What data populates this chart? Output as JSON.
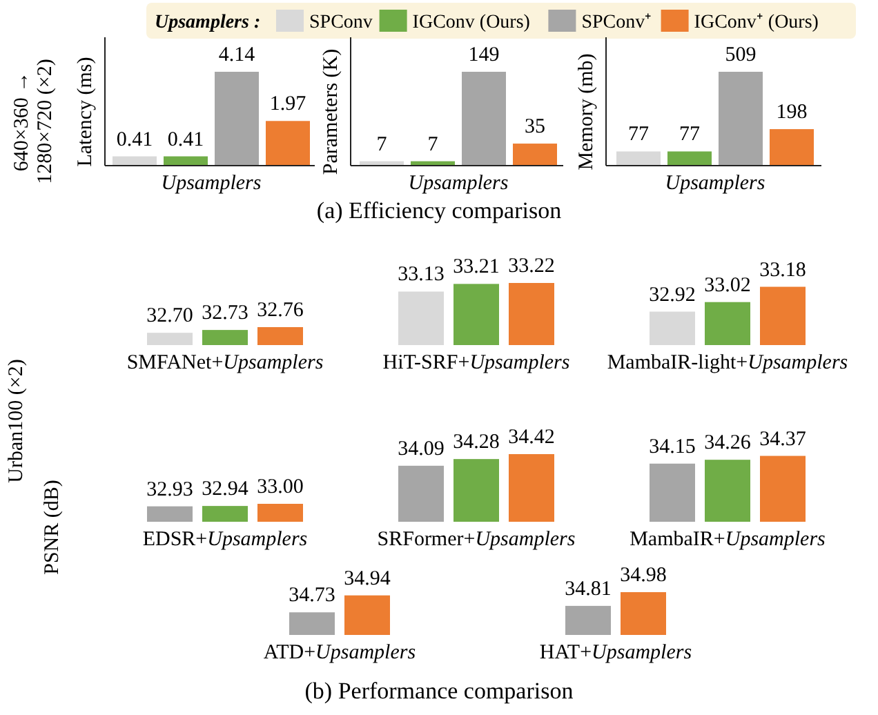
{
  "chart_data": [
    {
      "type": "bar",
      "ylabel": "Latency (ms)",
      "xlabel": "Upsamplers",
      "categories": [
        null
      ],
      "data_labels": true,
      "legend": "top",
      "legend_title": "Upsamplers :",
      "annotations": [
        "640×360 → 1280×720 (×2)"
      ],
      "series": [
        {
          "name": "SPConv",
          "color": "#d9d9d9",
          "values": [
            0.41
          ]
        },
        {
          "name": "IGConv (Ours)",
          "color": "#70ad47",
          "values": [
            0.41
          ]
        },
        {
          "name": "SPConv⁺",
          "color": "#a6a6a6",
          "values": [
            4.14
          ]
        },
        {
          "name": "IGConv⁺ (Ours)",
          "color": "#ed7d31",
          "values": [
            1.97
          ]
        }
      ]
    },
    {
      "type": "bar",
      "ylabel": "Parameters (K)",
      "xlabel": "Upsamplers",
      "categories": [
        null
      ],
      "data_labels": true,
      "series": [
        {
          "color": "#d9d9d9",
          "values": [
            7
          ]
        },
        {
          "color": "#70ad47",
          "values": [
            7
          ]
        },
        {
          "color": "#a6a6a6",
          "values": [
            149
          ]
        },
        {
          "color": "#ed7d31",
          "values": [
            35
          ]
        }
      ]
    },
    {
      "type": "bar",
      "ylabel": "Memory (mb)",
      "xlabel": "Upsamplers",
      "categories": [
        null
      ],
      "data_labels": true,
      "annotations": [
        "(a) Efficiency comparison"
      ],
      "series": [
        {
          "color": "#d9d9d9",
          "values": [
            77
          ]
        },
        {
          "color": "#70ad47",
          "values": [
            77
          ]
        },
        {
          "color": "#a6a6a6",
          "values": [
            509
          ]
        },
        {
          "color": "#ed7d31",
          "values": [
            198
          ]
        }
      ]
    },
    {
      "type": "bar",
      "xlabel": "SMFANet+Upsamplers",
      "categories": [
        null
      ],
      "ylim": [
        32.57,
        32.76
      ],
      "series": [
        {
          "color": "#d9d9d9",
          "values": [
            32.7
          ],
          "value_labels": [
            "32.70"
          ]
        },
        {
          "color": "#70ad47",
          "values": [
            32.73
          ],
          "value_labels": [
            "32.73"
          ]
        },
        {
          "color": "#ed7d31",
          "values": [
            32.76
          ],
          "value_labels": [
            "32.76"
          ]
        }
      ]
    },
    {
      "type": "bar",
      "xlabel": "HiT-SRF+Upsamplers",
      "categories": [
        null
      ],
      "ylim": [
        32.57,
        33.22
      ],
      "series": [
        {
          "color": "#d9d9d9",
          "values": [
            33.13
          ],
          "value_labels": [
            "33.13"
          ]
        },
        {
          "color": "#70ad47",
          "values": [
            33.21
          ],
          "value_labels": [
            "33.21"
          ]
        },
        {
          "color": "#ed7d31",
          "values": [
            33.22
          ],
          "value_labels": [
            "33.22"
          ]
        }
      ]
    },
    {
      "type": "bar",
      "xlabel": "MambaIR-light+Upsamplers",
      "categories": [
        null
      ],
      "ylim": [
        32.57,
        33.22
      ],
      "series": [
        {
          "color": "#d9d9d9",
          "values": [
            32.92
          ],
          "value_labels": [
            "32.92"
          ]
        },
        {
          "color": "#70ad47",
          "values": [
            33.02
          ],
          "value_labels": [
            "33.02"
          ]
        },
        {
          "color": "#ed7d31",
          "values": [
            33.18
          ],
          "value_labels": [
            "33.18"
          ]
        }
      ]
    },
    {
      "type": "bar",
      "xlabel": "EDSR+Upsamplers",
      "ylabel": "PSNR (dB)",
      "annotations": [
        "Urban100 (×2)"
      ],
      "categories": [
        null
      ],
      "ylim": [
        32.5,
        33.0
      ],
      "series": [
        {
          "color": "#a6a6a6",
          "values": [
            32.93
          ],
          "value_labels": [
            "32.93"
          ]
        },
        {
          "color": "#70ad47",
          "values": [
            32.94
          ],
          "value_labels": [
            "32.94"
          ]
        },
        {
          "color": "#ed7d31",
          "values": [
            33.0
          ],
          "value_labels": [
            "33.00"
          ]
        }
      ]
    },
    {
      "type": "bar",
      "xlabel": "SRFormer+Upsamplers",
      "categories": [
        null
      ],
      "ylim": [
        32.5,
        34.42
      ],
      "series": [
        {
          "color": "#a6a6a6",
          "values": [
            34.09
          ],
          "value_labels": [
            "34.09"
          ]
        },
        {
          "color": "#70ad47",
          "values": [
            34.28
          ],
          "value_labels": [
            "34.28"
          ]
        },
        {
          "color": "#ed7d31",
          "values": [
            34.42
          ],
          "value_labels": [
            "34.42"
          ]
        }
      ]
    },
    {
      "type": "bar",
      "xlabel": "MambaIR+Upsamplers",
      "categories": [
        null
      ],
      "ylim": [
        32.5,
        34.42
      ],
      "series": [
        {
          "color": "#a6a6a6",
          "values": [
            34.15
          ],
          "value_labels": [
            "34.15"
          ]
        },
        {
          "color": "#70ad47",
          "values": [
            34.26
          ],
          "value_labels": [
            "34.26"
          ]
        },
        {
          "color": "#ed7d31",
          "values": [
            34.37
          ],
          "value_labels": [
            "34.37"
          ]
        }
      ]
    },
    {
      "type": "bar",
      "xlabel": "ATD+Upsamplers",
      "categories": [
        null
      ],
      "ylim": [
        34.45,
        34.98
      ],
      "series": [
        {
          "color": "#a6a6a6",
          "values": [
            34.73
          ],
          "value_labels": [
            "34.73"
          ]
        },
        {
          "color": "#ed7d31",
          "values": [
            34.94
          ],
          "value_labels": [
            "34.94"
          ]
        }
      ]
    },
    {
      "type": "bar",
      "xlabel": "HAT+Upsamplers",
      "annotations": [
        "(b) Performance comparison"
      ],
      "categories": [
        null
      ],
      "ylim": [
        34.45,
        34.98
      ],
      "series": [
        {
          "color": "#a6a6a6",
          "values": [
            34.81
          ],
          "value_labels": [
            "34.81"
          ]
        },
        {
          "color": "#ed7d31",
          "values": [
            34.98
          ],
          "value_labels": [
            "34.98"
          ]
        }
      ]
    }
  ]
}
